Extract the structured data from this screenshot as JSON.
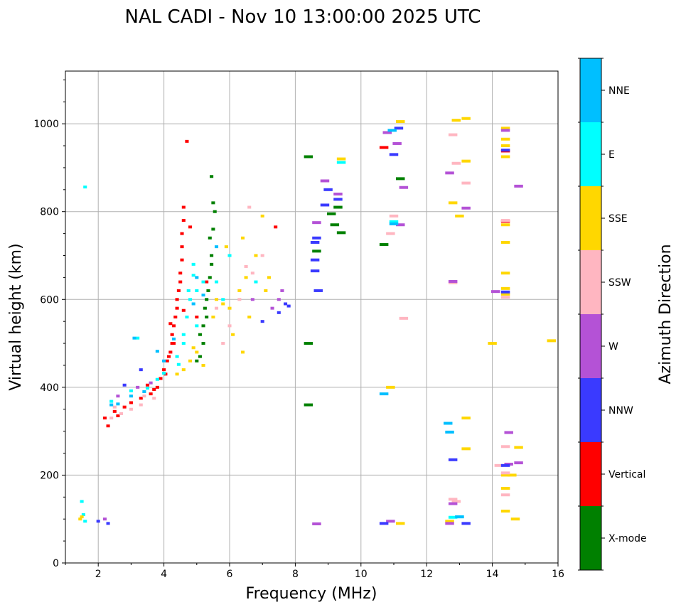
{
  "chart_data": {
    "type": "scatter",
    "title": "NAL CADI - Nov 10 13:00:00 2025 UTC",
    "xlabel": "Frequency (MHz)",
    "ylabel": "Virtual height (km)",
    "xlim": [
      1,
      16
    ],
    "ylim": [
      0,
      1120
    ],
    "xticks": [
      "2",
      "4",
      "6",
      "8",
      "10",
      "12",
      "14",
      "16"
    ],
    "xtick_values": [
      2,
      4,
      6,
      8,
      10,
      12,
      14,
      16
    ],
    "yticks": [
      "0",
      "200",
      "400",
      "600",
      "800",
      "1000"
    ],
    "ytick_values": [
      0,
      200,
      400,
      600,
      800,
      1000
    ],
    "grid": true,
    "colorbar": {
      "label": "Azimuth Direction",
      "categories": [
        "X-mode",
        "Vertical",
        "NNW",
        "W",
        "SSW",
        "SSE",
        "E",
        "NNE"
      ],
      "colors": [
        "#008000",
        "#ff0000",
        "#3a3aff",
        "#b452d6",
        "#ffb6c1",
        "#ffd700",
        "#00ffff",
        "#00bfff"
      ]
    },
    "points_format": "[frequency_MHz, virtual_height_km, category_index]",
    "points": [
      [
        2.2,
        330,
        1
      ],
      [
        2.5,
        345,
        1
      ],
      [
        2.8,
        355,
        1
      ],
      [
        3.0,
        365,
        1
      ],
      [
        3.3,
        375,
        1
      ],
      [
        3.6,
        385,
        1
      ],
      [
        3.8,
        400,
        1
      ],
      [
        3.9,
        420,
        1
      ],
      [
        4.0,
        440,
        1
      ],
      [
        4.1,
        460,
        1
      ],
      [
        4.2,
        480,
        1
      ],
      [
        4.25,
        500,
        1
      ],
      [
        4.25,
        520,
        1
      ],
      [
        4.3,
        540,
        1
      ],
      [
        4.35,
        560,
        1
      ],
      [
        4.4,
        580,
        1
      ],
      [
        4.4,
        600,
        1
      ],
      [
        4.45,
        620,
        1
      ],
      [
        4.5,
        640,
        1
      ],
      [
        4.5,
        660,
        1
      ],
      [
        4.55,
        690,
        1
      ],
      [
        4.55,
        720,
        1
      ],
      [
        4.55,
        750,
        1
      ],
      [
        4.6,
        780,
        1
      ],
      [
        4.6,
        810,
        1
      ],
      [
        4.7,
        960,
        1
      ],
      [
        4.8,
        765,
        1
      ],
      [
        4.6,
        575,
        1
      ],
      [
        4.2,
        545,
        1
      ],
      [
        4.3,
        500,
        1
      ],
      [
        2.3,
        312,
        1
      ],
      [
        3.5,
        405,
        1
      ],
      [
        4.15,
        470,
        1
      ],
      [
        4.05,
        430,
        1
      ],
      [
        3.7,
        395,
        1
      ],
      [
        5.3,
        640,
        1
      ],
      [
        7.4,
        765,
        1
      ],
      [
        10.7,
        946,
        1
      ],
      [
        14.4,
        938,
        1
      ],
      [
        14.4,
        778,
        1
      ],
      [
        5.0,
        560,
        1
      ],
      [
        2.6,
        335,
        1
      ],
      [
        3.0,
        392,
        6
      ],
      [
        3.5,
        398,
        6
      ],
      [
        4.0,
        432,
        6
      ],
      [
        4.4,
        470,
        6
      ],
      [
        4.6,
        520,
        6
      ],
      [
        4.7,
        560,
        6
      ],
      [
        4.8,
        600,
        6
      ],
      [
        5.0,
        620,
        6
      ],
      [
        5.2,
        640,
        6
      ],
      [
        4.9,
        680,
        6
      ],
      [
        5.0,
        540,
        6
      ],
      [
        1.6,
        856,
        6
      ],
      [
        3.2,
        512,
        6
      ],
      [
        1.5,
        140,
        6
      ],
      [
        1.6,
        95,
        6
      ],
      [
        1.55,
        110,
        6
      ],
      [
        4.75,
        620,
        6
      ],
      [
        4.9,
        655,
        6
      ],
      [
        4.6,
        500,
        6
      ],
      [
        4.45,
        452,
        6
      ],
      [
        3.8,
        418,
        6
      ],
      [
        2.4,
        368,
        6
      ],
      [
        5.6,
        640,
        6
      ],
      [
        6.0,
        700,
        6
      ],
      [
        5.8,
        600,
        6
      ],
      [
        9.4,
        912,
        6
      ],
      [
        11.0,
        777,
        6
      ],
      [
        12.8,
        104,
        6
      ],
      [
        13.0,
        105,
        6
      ],
      [
        6.8,
        640,
        6
      ],
      [
        5.2,
        500,
        0
      ],
      [
        5.1,
        470,
        0
      ],
      [
        5.3,
        560,
        0
      ],
      [
        5.3,
        600,
        0
      ],
      [
        5.4,
        650,
        0
      ],
      [
        5.45,
        700,
        0
      ],
      [
        5.5,
        760,
        0
      ],
      [
        5.5,
        820,
        0
      ],
      [
        5.45,
        880,
        0
      ],
      [
        5.2,
        540,
        0
      ],
      [
        8.4,
        925,
        0
      ],
      [
        8.4,
        500,
        0
      ],
      [
        8.4,
        360,
        0
      ],
      [
        9.2,
        770,
        0
      ],
      [
        9.3,
        810,
        0
      ],
      [
        9.1,
        795,
        0
      ],
      [
        10.7,
        725,
        0
      ],
      [
        11.2,
        875,
        0
      ],
      [
        8.65,
        710,
        0
      ],
      [
        5.0,
        460,
        0
      ],
      [
        5.35,
        620,
        0
      ],
      [
        5.45,
        680,
        0
      ],
      [
        5.4,
        740,
        0
      ],
      [
        5.1,
        520,
        0
      ],
      [
        5.25,
        580,
        0
      ],
      [
        9.4,
        752,
        0
      ],
      [
        5.55,
        800,
        0
      ],
      [
        4.6,
        440,
        5
      ],
      [
        4.8,
        460,
        5
      ],
      [
        5.0,
        480,
        5
      ],
      [
        5.2,
        450,
        5
      ],
      [
        5.5,
        560,
        5
      ],
      [
        5.8,
        590,
        5
      ],
      [
        6.0,
        580,
        5
      ],
      [
        6.3,
        620,
        5
      ],
      [
        6.5,
        650,
        5
      ],
      [
        6.8,
        700,
        5
      ],
      [
        7.0,
        790,
        5
      ],
      [
        7.2,
        650,
        5
      ],
      [
        5.9,
        720,
        5
      ],
      [
        6.1,
        520,
        5
      ],
      [
        6.4,
        480,
        5
      ],
      [
        1.5,
        105,
        5
      ],
      [
        1.45,
        100,
        5
      ],
      [
        9.4,
        920,
        5
      ],
      [
        10.9,
        400,
        5
      ],
      [
        11.2,
        90,
        5
      ],
      [
        12.7,
        95,
        5
      ],
      [
        12.8,
        820,
        5
      ],
      [
        13.0,
        790,
        5
      ],
      [
        13.2,
        1012,
        5
      ],
      [
        13.2,
        915,
        5
      ],
      [
        13.2,
        260,
        5
      ],
      [
        13.2,
        330,
        5
      ],
      [
        12.9,
        1008,
        5
      ],
      [
        14.4,
        660,
        5
      ],
      [
        14.4,
        625,
        5
      ],
      [
        14.4,
        200,
        5
      ],
      [
        14.6,
        200,
        5
      ],
      [
        14.4,
        118,
        5
      ],
      [
        14.4,
        170,
        5
      ],
      [
        14.7,
        100,
        5
      ],
      [
        14.8,
        263,
        5
      ],
      [
        14.0,
        500,
        5
      ],
      [
        15.8,
        506,
        5
      ],
      [
        14.4,
        770,
        5
      ],
      [
        14.4,
        730,
        5
      ],
      [
        14.4,
        950,
        5
      ],
      [
        14.4,
        965,
        5
      ],
      [
        14.4,
        990,
        5
      ],
      [
        14.4,
        925,
        5
      ],
      [
        14.4,
        612,
        5
      ],
      [
        4.4,
        430,
        5
      ],
      [
        4.9,
        490,
        5
      ],
      [
        5.6,
        600,
        5
      ],
      [
        6.6,
        560,
        5
      ],
      [
        7.1,
        620,
        5
      ],
      [
        6.4,
        740,
        5
      ],
      [
        11.2,
        1005,
        5
      ],
      [
        2.4,
        330,
        4
      ],
      [
        2.7,
        340,
        4
      ],
      [
        3.0,
        350,
        4
      ],
      [
        3.3,
        360,
        4
      ],
      [
        3.7,
        375,
        4
      ],
      [
        6.5,
        675,
        4
      ],
      [
        6.3,
        600,
        4
      ],
      [
        6.0,
        540,
        4
      ],
      [
        7.0,
        700,
        4
      ],
      [
        5.8,
        500,
        4
      ],
      [
        10.9,
        750,
        4
      ],
      [
        11.0,
        790,
        4
      ],
      [
        12.8,
        975,
        4
      ],
      [
        12.9,
        910,
        4
      ],
      [
        13.2,
        865,
        4
      ],
      [
        12.8,
        145,
        4
      ],
      [
        12.9,
        140,
        4
      ],
      [
        14.2,
        222,
        4
      ],
      [
        14.4,
        265,
        4
      ],
      [
        14.4,
        155,
        4
      ],
      [
        14.4,
        205,
        4
      ],
      [
        14.4,
        780,
        4
      ],
      [
        11.3,
        557,
        4
      ],
      [
        6.6,
        810,
        4
      ],
      [
        2.5,
        355,
        4
      ],
      [
        3.4,
        380,
        4
      ],
      [
        6.7,
        660,
        4
      ],
      [
        5.6,
        580,
        4
      ],
      [
        12.8,
        638,
        4
      ],
      [
        14.4,
        605,
        4
      ],
      [
        2.2,
        100,
        3
      ],
      [
        2.6,
        380,
        3
      ],
      [
        3.2,
        400,
        3
      ],
      [
        3.6,
        410,
        3
      ],
      [
        7.3,
        580,
        3
      ],
      [
        7.6,
        620,
        3
      ],
      [
        7.5,
        600,
        3
      ],
      [
        8.65,
        775,
        3
      ],
      [
        8.9,
        870,
        3
      ],
      [
        9.3,
        840,
        3
      ],
      [
        10.9,
        95,
        3
      ],
      [
        10.8,
        980,
        3
      ],
      [
        11.1,
        955,
        3
      ],
      [
        11.3,
        855,
        3
      ],
      [
        12.7,
        888,
        3
      ],
      [
        12.7,
        90,
        3
      ],
      [
        12.8,
        135,
        3
      ],
      [
        13.2,
        808,
        3
      ],
      [
        14.1,
        618,
        3
      ],
      [
        14.5,
        297,
        3
      ],
      [
        14.8,
        228,
        3
      ],
      [
        14.8,
        858,
        3
      ],
      [
        14.4,
        985,
        3
      ],
      [
        14.5,
        225,
        3
      ],
      [
        12.8,
        641,
        3
      ],
      [
        6.7,
        600,
        3
      ],
      [
        8.65,
        89,
        3
      ],
      [
        11.2,
        770,
        3
      ],
      [
        2.0,
        95,
        2
      ],
      [
        2.3,
        90,
        2
      ],
      [
        2.8,
        405,
        2
      ],
      [
        3.3,
        440,
        2
      ],
      [
        7.7,
        590,
        2
      ],
      [
        7.8,
        585,
        2
      ],
      [
        7.5,
        570,
        2
      ],
      [
        8.65,
        740,
        2
      ],
      [
        8.6,
        690,
        2
      ],
      [
        8.6,
        730,
        2
      ],
      [
        8.7,
        620,
        2
      ],
      [
        8.9,
        815,
        2
      ],
      [
        9.0,
        850,
        2
      ],
      [
        10.7,
        90,
        2
      ],
      [
        11.0,
        930,
        2
      ],
      [
        12.8,
        235,
        2
      ],
      [
        13.2,
        90,
        2
      ],
      [
        14.4,
        617,
        2
      ],
      [
        14.4,
        222,
        2
      ],
      [
        14.4,
        940,
        2
      ],
      [
        11.15,
        990,
        2
      ],
      [
        9.3,
        828,
        2
      ],
      [
        7.0,
        550,
        2
      ],
      [
        8.6,
        665,
        2
      ],
      [
        2.4,
        360,
        7
      ],
      [
        2.6,
        362,
        7
      ],
      [
        3.0,
        380,
        7
      ],
      [
        3.4,
        390,
        7
      ],
      [
        3.8,
        482,
        7
      ],
      [
        4.0,
        460,
        7
      ],
      [
        4.9,
        590,
        7
      ],
      [
        5.0,
        650,
        7
      ],
      [
        5.6,
        720,
        7
      ],
      [
        3.1,
        512,
        7
      ],
      [
        10.95,
        985,
        7
      ],
      [
        12.65,
        318,
        7
      ],
      [
        12.7,
        298,
        7
      ],
      [
        13.0,
        105,
        7
      ],
      [
        10.7,
        385,
        7
      ],
      [
        11.0,
        772,
        7
      ],
      [
        4.3,
        510,
        7
      ],
      [
        5.2,
        610,
        7
      ]
    ]
  }
}
